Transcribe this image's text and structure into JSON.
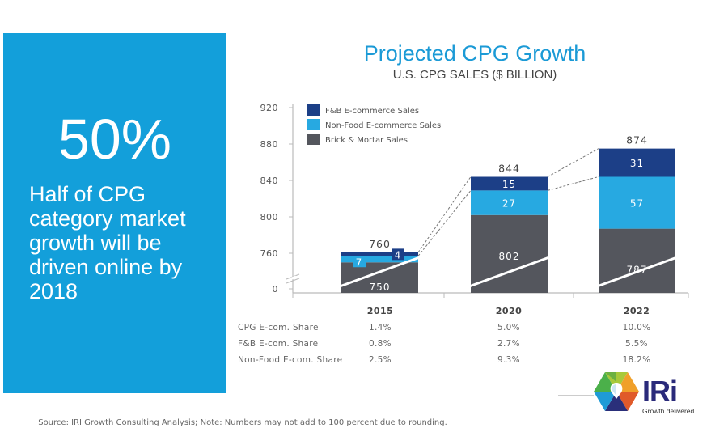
{
  "panel": {
    "stat": "50%",
    "description": "Half of CPG category market growth will be driven online by 2018",
    "bg_color": "#139fda"
  },
  "chart_data": {
    "type": "bar",
    "stacked": true,
    "title": "Projected CPG Growth",
    "subtitle": "U.S. CPG SALES ($ BILLION)",
    "xlabel": "",
    "ylabel": "",
    "categories": [
      "2015",
      "2020",
      "2022"
    ],
    "series": [
      {
        "name": "Brick & Mortar Sales",
        "values": [
          750,
          802,
          787
        ],
        "color": "#54565d"
      },
      {
        "name": "Non-Food E-commerce Sales",
        "values": [
          7,
          27,
          57
        ],
        "color": "#27a9e1"
      },
      {
        "name": "F&B E-commerce Sales",
        "values": [
          4,
          15,
          31
        ],
        "color": "#1c3f87"
      }
    ],
    "totals": [
      "760",
      "844",
      "874"
    ],
    "y_ticks": [
      "920",
      "880",
      "840",
      "800",
      "760",
      "0"
    ],
    "ylim": [
      740,
      920
    ],
    "axis_break": true,
    "legend": {
      "position": "top-left",
      "entries": [
        "F&B E-commerce Sales",
        "Non-Food E-commerce Sales",
        "Brick & Mortar Sales"
      ]
    },
    "grid": false,
    "connector_lines": "dashed",
    "table": {
      "rows": [
        {
          "label": "CPG E-com. Share",
          "values": [
            "1.4%",
            "5.0%",
            "10.0%"
          ]
        },
        {
          "label": "F&B E-com. Share",
          "values": [
            "0.8%",
            "2.7%",
            "5.5%"
          ]
        },
        {
          "label": "Non-Food E-com. Share",
          "values": [
            "2.5%",
            "9.3%",
            "18.2%"
          ]
        }
      ]
    }
  },
  "footer": "Source: IRI Growth Consulting Analysis; Note: Numbers may not add to 100 percent due to rounding.",
  "logo": {
    "name": "IRi",
    "tagline": "Growth delivered."
  }
}
